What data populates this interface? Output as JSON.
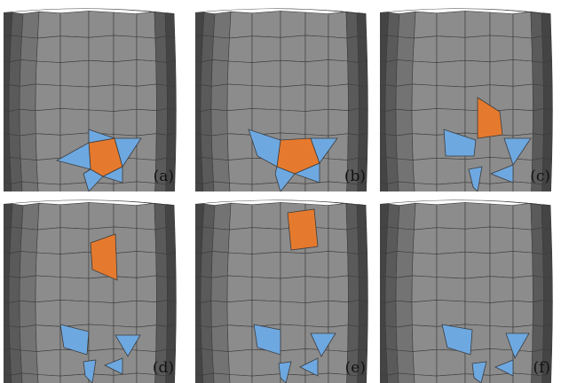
{
  "colors": {
    "background": "#ffffff",
    "mesh_face": "#8c8c8c",
    "mesh_edge": "#3c3c3c",
    "side_dark": "#5a5a5a",
    "side_darker": "#444444",
    "highlight_orange": "#e57a2e",
    "highlight_blue": "#6ea8e0"
  },
  "panels": [
    {
      "label": "(a)"
    },
    {
      "label": "(b)"
    },
    {
      "label": "(c)"
    },
    {
      "label": "(d)"
    },
    {
      "label": "(e)"
    },
    {
      "label": "(f)"
    }
  ]
}
